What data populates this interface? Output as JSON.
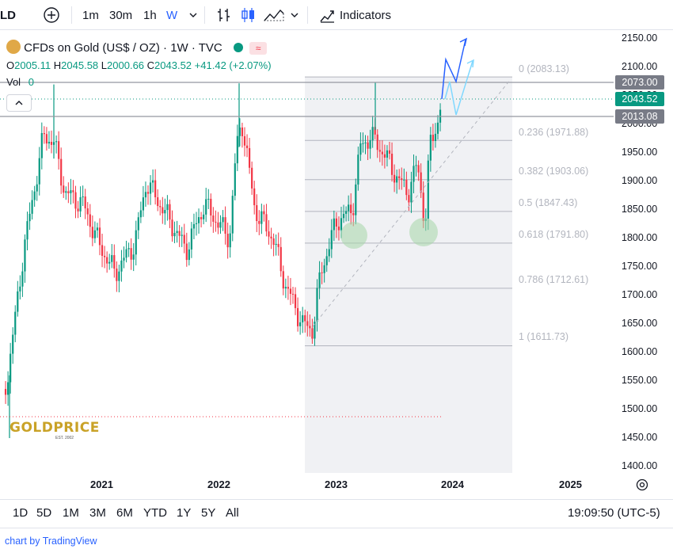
{
  "toolbar": {
    "symbol_tail": "LD",
    "intervals": [
      "1m",
      "30m",
      "1h",
      "W"
    ],
    "indicators_label": "Indicators"
  },
  "legend": {
    "title": "CFDs on Gold (US$ / OZ) · 1W · TVC",
    "open_label": "O",
    "open": "2005.11",
    "high_label": "H",
    "high": "2045.58",
    "low_label": "L",
    "low": "2000.66",
    "close_label": "C",
    "close": "2043.52",
    "change": "+41.42 (+2.07%)",
    "vol_label": "Vol",
    "vol": "0"
  },
  "price_axis": {
    "ticks": [
      "2150.00",
      "2100.00",
      "2050.00",
      "2000.00",
      "1950.00",
      "1900.00",
      "1850.00",
      "1800.00",
      "1750.00",
      "1700.00",
      "1650.00",
      "1600.00",
      "1550.00",
      "1500.00",
      "1450.00",
      "1400.00"
    ],
    "tag_top": "2073.00",
    "tag_current": "2043.52",
    "tag_bottom": "2013.08"
  },
  "time_axis": {
    "ticks": [
      "2021",
      "2022",
      "2023",
      "2024",
      "2025"
    ]
  },
  "fib_levels": [
    {
      "ratio": "0",
      "label": "0 (2083.13)"
    },
    {
      "ratio": "0.236",
      "label": "0.236 (1971.88)"
    },
    {
      "ratio": "0.382",
      "label": "0.382 (1903.06)"
    },
    {
      "ratio": "0.5",
      "label": "0.5 (1847.43)"
    },
    {
      "ratio": "0.618",
      "label": "0.618 (1791.80)"
    },
    {
      "ratio": "0.786",
      "label": "0.786 (1712.61)"
    },
    {
      "ratio": "1",
      "label": "1 (1611.73)"
    }
  ],
  "watermark": {
    "brand": "GOLDPRICE",
    "est": "EST. 2002"
  },
  "ranges": [
    "1D",
    "5D",
    "1M",
    "3M",
    "6M",
    "YTD",
    "1Y",
    "5Y",
    "All"
  ],
  "clock": "19:09:50 (UTC-5)",
  "footer": {
    "text": "chart by TradingView"
  },
  "colors": {
    "up": "#089981",
    "down": "#f23645",
    "accent": "#2962ff",
    "tag_gray": "#787b86"
  }
}
